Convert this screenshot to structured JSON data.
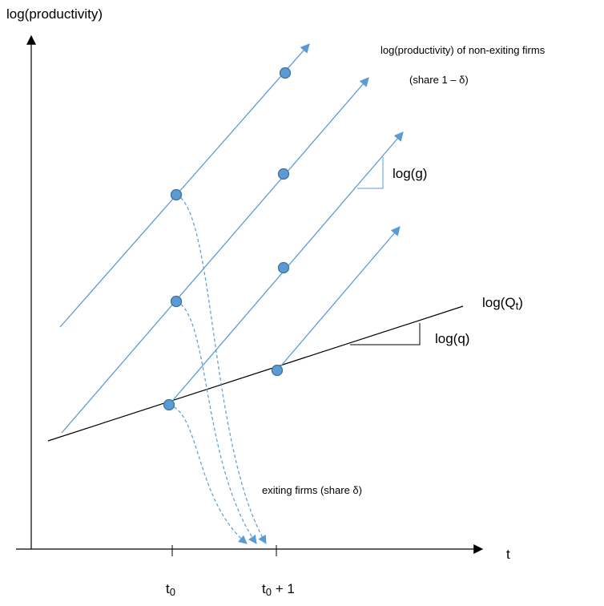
{
  "diagram": {
    "y_axis_label": "log(productivity)",
    "x_axis_label": "t",
    "tick_t0_base": "t",
    "tick_t0_sub": "0",
    "tick_t1_base": "t",
    "tick_t1_sub": "0",
    "tick_t1_suffix": " + 1",
    "nonexit_label": "log(productivity) of non-exiting firms",
    "nonexit_share_label": "(share 1 – δ)",
    "growth_label": "log(g)",
    "frontier_label_base": "log(Q",
    "frontier_label_sub": "t",
    "frontier_label_close": ")",
    "frontier_slope_label": "log(q)",
    "exit_label": "exiting firms (share δ)"
  },
  "colors": {
    "axis": "#000000",
    "trajectory": "#5b9bd5",
    "point_fill": "#5b9bd5",
    "point_stroke": "#41719c",
    "dashed": "#5b9bd5"
  }
}
